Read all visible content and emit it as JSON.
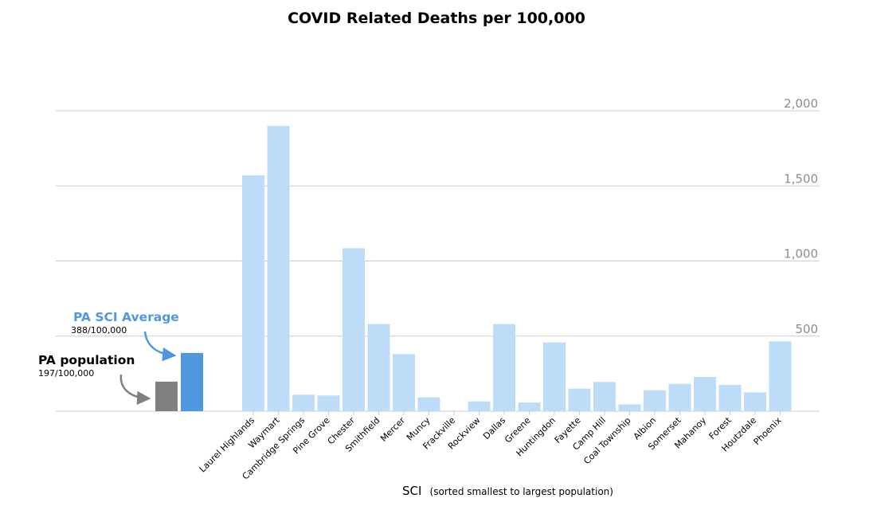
{
  "chart_data": {
    "type": "bar",
    "title": "COVID Related Deaths per 100,000",
    "xlabel_main": "SCI",
    "xlabel_note": "(sorted smallest to largest population)",
    "ylabel": "",
    "ylim": [
      0,
      2000
    ],
    "y_ticks": [
      500,
      1000,
      1500,
      2000
    ],
    "y_tick_labels": [
      "500",
      "1,000",
      "1,500",
      "2,000"
    ],
    "grid": true,
    "categories": [
      "Laurel Highlands",
      "Waymart",
      "Cambridge Springs",
      "Pine Grove",
      "Chester",
      "Smithfield",
      "Mercer",
      "Muncy",
      "Frackville",
      "Rockview",
      "Dallas",
      "Greene",
      "Huntingdon",
      "Fayette",
      "Camp Hill",
      "Coal Township",
      "Albion",
      "Somerset",
      "Mahanoy",
      "Forest",
      "Houtzdale",
      "Phoenix"
    ],
    "values": [
      1570,
      1900,
      110,
      105,
      1085,
      580,
      380,
      92,
      0,
      65,
      580,
      58,
      458,
      150,
      195,
      45,
      140,
      182,
      228,
      175,
      125,
      465
    ],
    "reference_bars": [
      {
        "name": "PA population",
        "value": 197,
        "label": "197/100,000",
        "color": "#808080"
      },
      {
        "name": "PA SCI Average",
        "value": 388,
        "label": "388/100,000",
        "color": "#4f98e0"
      }
    ],
    "colors": {
      "bars": "#bddcf8",
      "grid": "#cccccc",
      "annotation_sci": "#4f98e0",
      "annotation_pop": "#000000",
      "arrow_sci": "#4f98e0",
      "arrow_pop": "#808080"
    }
  }
}
